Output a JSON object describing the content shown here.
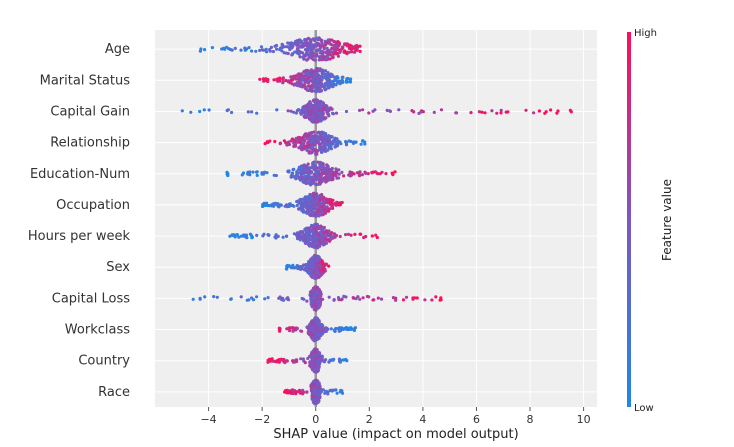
{
  "chart_data": {
    "type": "scatter",
    "subtype": "shap-beeswarm-summary",
    "title": "",
    "xlabel": "SHAP value (impact on model output)",
    "ylabel": "",
    "xlim": [
      -6,
      10.5
    ],
    "xticks": [
      -4,
      -2,
      0,
      2,
      4,
      6,
      8,
      10
    ],
    "xtick_labels": [
      "−4",
      "−2",
      "0",
      "2",
      "4",
      "6",
      "8",
      "10"
    ],
    "grid": true,
    "colors": {
      "low": "#1e88e5",
      "mid": "#7e57c2",
      "high": "#ff0d57",
      "zero_line": "#999999",
      "background": "#efefef"
    },
    "colorbar": {
      "title": "Feature value",
      "high_label": "High",
      "low_label": "Low"
    },
    "features": [
      {
        "name": "Age",
        "min": -4.6,
        "max": 1.7,
        "mean_abs": 0.8,
        "low_side": "negative"
      },
      {
        "name": "Marital Status",
        "min": -2.1,
        "max": 1.3,
        "mean_abs": 0.5,
        "low_side": "positive"
      },
      {
        "name": "Capital Gain",
        "min": -5.1,
        "max": 9.7,
        "mean_abs": 0.3,
        "low_side": "negative"
      },
      {
        "name": "Relationship",
        "min": -1.9,
        "max": 2.0,
        "mean_abs": 0.45,
        "low_side": "positive"
      },
      {
        "name": "Education-Num",
        "min": -3.4,
        "max": 3.0,
        "mean_abs": 0.5,
        "low_side": "negative"
      },
      {
        "name": "Occupation",
        "min": -2.0,
        "max": 1.0,
        "mean_abs": 0.4,
        "low_side": "negative"
      },
      {
        "name": "Hours per week",
        "min": -3.3,
        "max": 2.3,
        "mean_abs": 0.35,
        "low_side": "negative"
      },
      {
        "name": "Sex",
        "min": -1.1,
        "max": 0.5,
        "mean_abs": 0.2,
        "low_side": "negative"
      },
      {
        "name": "Capital Loss",
        "min": -4.6,
        "max": 5.1,
        "mean_abs": 0.1,
        "low_side": "negative"
      },
      {
        "name": "Workclass",
        "min": -1.4,
        "max": 1.5,
        "mean_abs": 0.15,
        "low_side": "positive"
      },
      {
        "name": "Country",
        "min": -1.8,
        "max": 1.3,
        "mean_abs": 0.1,
        "low_side": "positive"
      },
      {
        "name": "Race",
        "min": -1.2,
        "max": 1.0,
        "mean_abs": 0.08,
        "low_side": "positive"
      }
    ]
  }
}
